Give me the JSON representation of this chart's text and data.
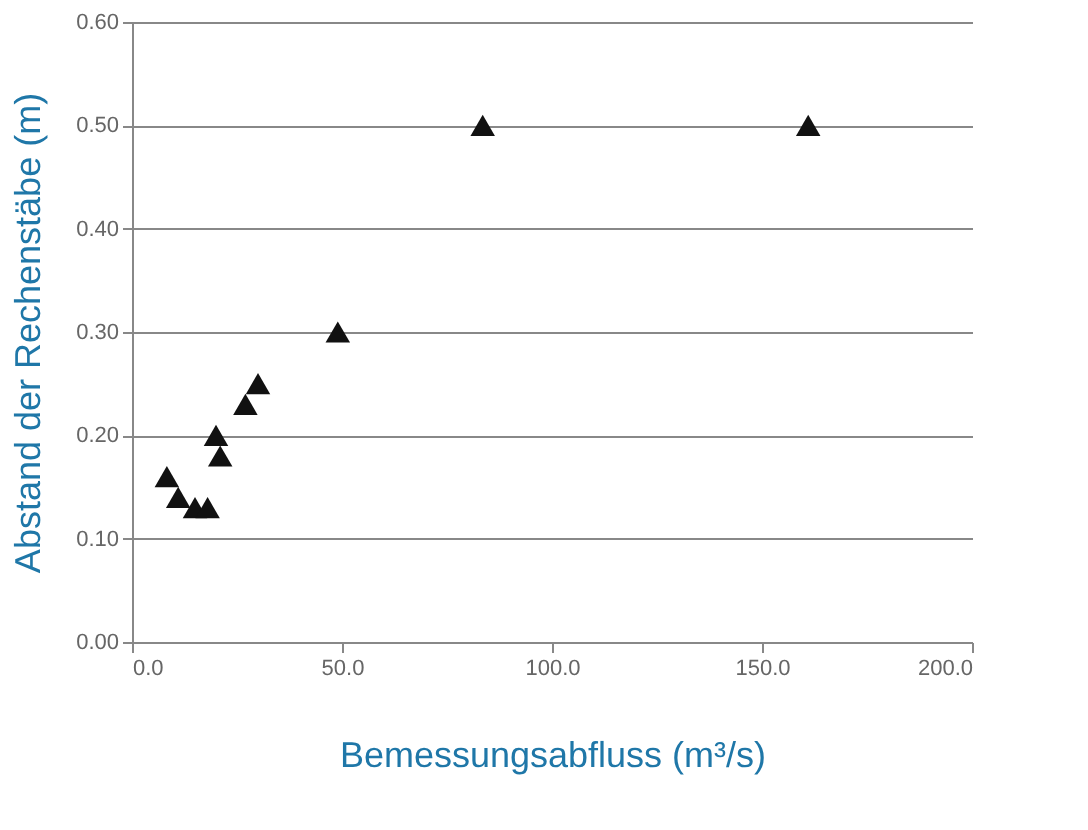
{
  "chart_data": {
    "type": "scatter",
    "xlabel": "Bemessungsabfluss (m³/s)",
    "ylabel": "Abstand der Rechenstäbe  (m)",
    "x": [
      8.3,
      11,
      15,
      18,
      20,
      21,
      27,
      30,
      49,
      83.5,
      161
    ],
    "series": [
      {
        "color": "#111111",
        "values": [
          0.16,
          0.14,
          0.13,
          0.13,
          0.2,
          0.18,
          0.23,
          0.25,
          0.3,
          0.5,
          0.5
        ]
      }
    ],
    "xlim": [
      0,
      200
    ],
    "ylim": [
      0,
      0.6
    ],
    "xticks": [
      {
        "value": 0,
        "label": "0.0"
      },
      {
        "value": 50,
        "label": "50.0"
      },
      {
        "value": 100,
        "label": "100.0"
      },
      {
        "value": 150,
        "label": "150.0"
      },
      {
        "value": 200,
        "label": "200.0"
      }
    ],
    "yticks": [
      {
        "value": 0,
        "label": "0.00"
      },
      {
        "value": 0.1,
        "label": "0.10"
      },
      {
        "value": 0.2,
        "label": "0.20"
      },
      {
        "value": 0.3,
        "label": "0.30"
      },
      {
        "value": 0.4,
        "label": "0.40"
      },
      {
        "value": 0.5,
        "label": "0.50"
      },
      {
        "value": 0.6,
        "label": "0.60"
      }
    ],
    "grid": "y",
    "marker": "triangle"
  }
}
